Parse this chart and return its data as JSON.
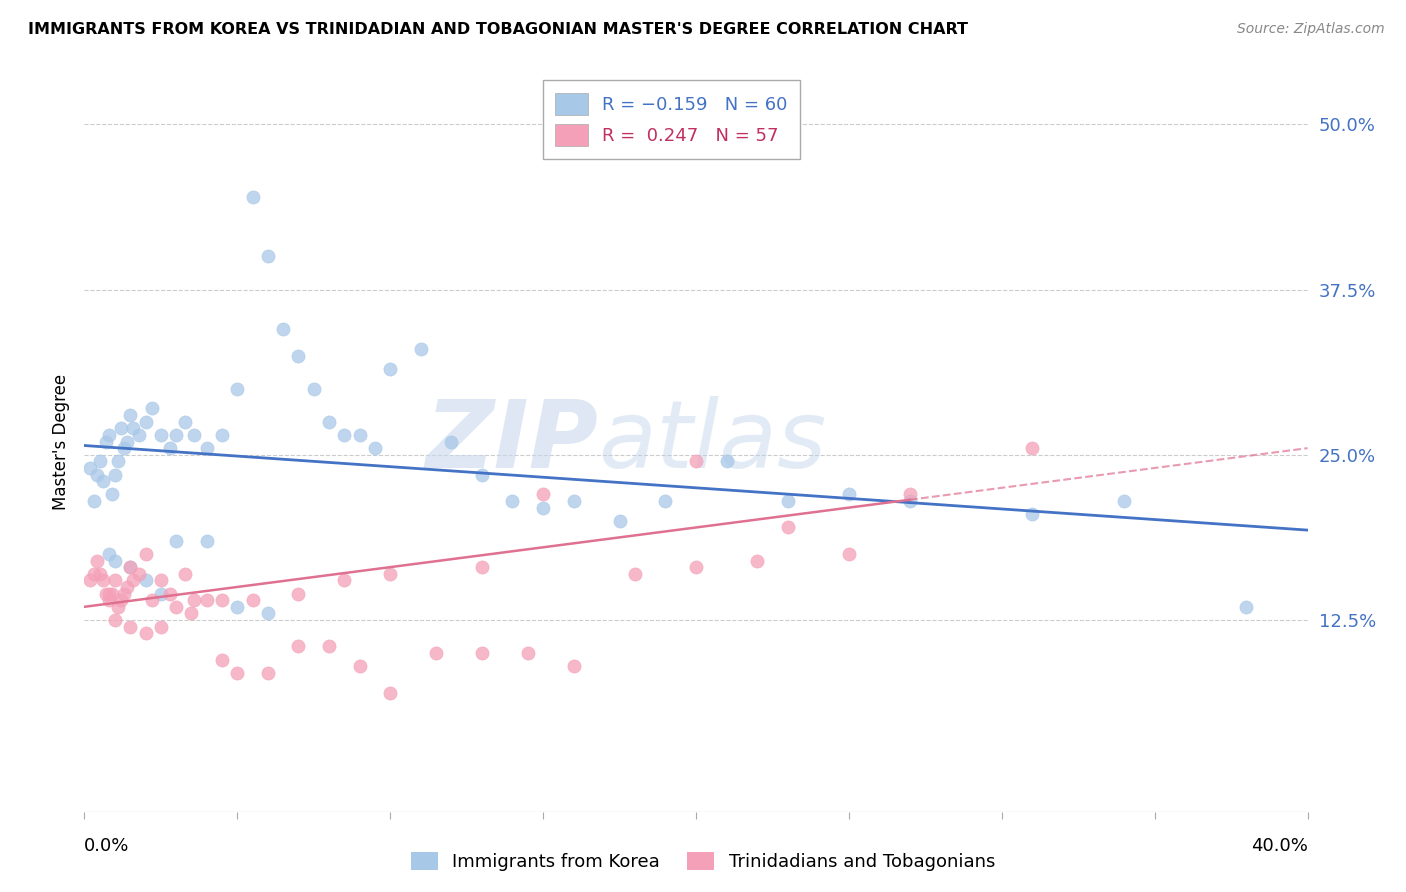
{
  "title": "IMMIGRANTS FROM KOREA VS TRINIDADIAN AND TOBAGONIAN MASTER'S DEGREE CORRELATION CHART",
  "source": "Source: ZipAtlas.com",
  "ylabel": "Master's Degree",
  "ytick_labels": [
    "50.0%",
    "37.5%",
    "25.0%",
    "12.5%"
  ],
  "ytick_values": [
    0.5,
    0.375,
    0.25,
    0.125
  ],
  "xmin": 0.0,
  "xmax": 0.4,
  "ymin": -0.02,
  "ymax": 0.54,
  "korea_color": "#a8c8e8",
  "tt_color": "#f4a0b8",
  "korea_line_color": "#4472c4",
  "tt_line_color": "#e07090",
  "watermark_zip": "ZIP",
  "watermark_atlas": "atlas",
  "korea_scatter_x": [
    0.002,
    0.003,
    0.004,
    0.005,
    0.006,
    0.007,
    0.008,
    0.009,
    0.01,
    0.011,
    0.012,
    0.013,
    0.014,
    0.015,
    0.016,
    0.018,
    0.02,
    0.022,
    0.025,
    0.028,
    0.03,
    0.033,
    0.036,
    0.04,
    0.045,
    0.05,
    0.055,
    0.06,
    0.065,
    0.07,
    0.075,
    0.08,
    0.085,
    0.09,
    0.095,
    0.1,
    0.11,
    0.12,
    0.13,
    0.14,
    0.15,
    0.16,
    0.175,
    0.19,
    0.21,
    0.23,
    0.25,
    0.27,
    0.31,
    0.34,
    0.008,
    0.01,
    0.015,
    0.02,
    0.025,
    0.03,
    0.04,
    0.05,
    0.06,
    0.38
  ],
  "korea_scatter_y": [
    0.24,
    0.215,
    0.235,
    0.245,
    0.23,
    0.26,
    0.265,
    0.22,
    0.235,
    0.245,
    0.27,
    0.255,
    0.26,
    0.28,
    0.27,
    0.265,
    0.275,
    0.285,
    0.265,
    0.255,
    0.265,
    0.275,
    0.265,
    0.255,
    0.265,
    0.3,
    0.445,
    0.4,
    0.345,
    0.325,
    0.3,
    0.275,
    0.265,
    0.265,
    0.255,
    0.315,
    0.33,
    0.26,
    0.235,
    0.215,
    0.21,
    0.215,
    0.2,
    0.215,
    0.245,
    0.215,
    0.22,
    0.215,
    0.205,
    0.215,
    0.175,
    0.17,
    0.165,
    0.155,
    0.145,
    0.185,
    0.185,
    0.135,
    0.13,
    0.135
  ],
  "tt_scatter_x": [
    0.002,
    0.003,
    0.004,
    0.005,
    0.006,
    0.007,
    0.008,
    0.009,
    0.01,
    0.011,
    0.012,
    0.013,
    0.014,
    0.015,
    0.016,
    0.018,
    0.02,
    0.022,
    0.025,
    0.028,
    0.03,
    0.033,
    0.036,
    0.04,
    0.045,
    0.05,
    0.06,
    0.07,
    0.08,
    0.09,
    0.1,
    0.115,
    0.13,
    0.145,
    0.16,
    0.18,
    0.2,
    0.22,
    0.25,
    0.008,
    0.01,
    0.015,
    0.02,
    0.025,
    0.035,
    0.045,
    0.055,
    0.07,
    0.085,
    0.1,
    0.13,
    0.15,
    0.2,
    0.23,
    0.27,
    0.31
  ],
  "tt_scatter_y": [
    0.155,
    0.16,
    0.17,
    0.16,
    0.155,
    0.145,
    0.14,
    0.145,
    0.155,
    0.135,
    0.14,
    0.145,
    0.15,
    0.165,
    0.155,
    0.16,
    0.175,
    0.14,
    0.155,
    0.145,
    0.135,
    0.16,
    0.14,
    0.14,
    0.095,
    0.085,
    0.085,
    0.105,
    0.105,
    0.09,
    0.07,
    0.1,
    0.1,
    0.1,
    0.09,
    0.16,
    0.165,
    0.17,
    0.175,
    0.145,
    0.125,
    0.12,
    0.115,
    0.12,
    0.13,
    0.14,
    0.14,
    0.145,
    0.155,
    0.16,
    0.165,
    0.22,
    0.245,
    0.195,
    0.22,
    0.255
  ]
}
